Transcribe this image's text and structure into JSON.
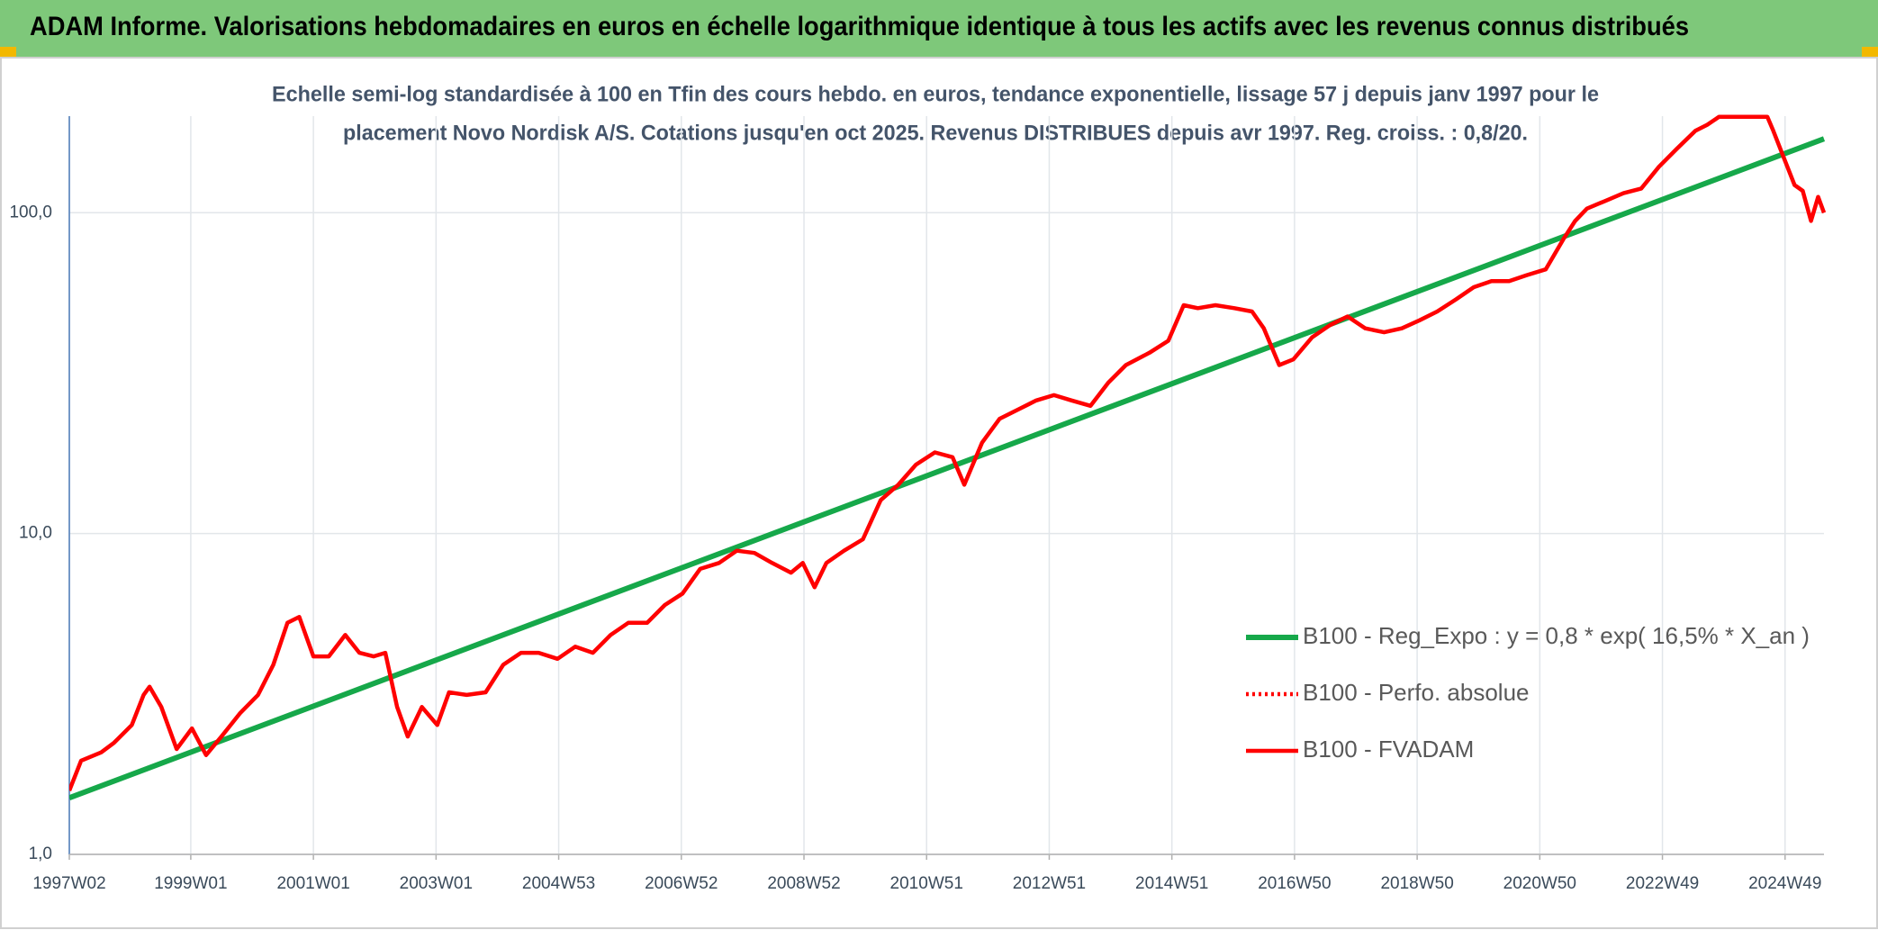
{
  "chart_data": {
    "type": "line",
    "title": "ADAM Informe. Valorisations hebdomadaires en euros en échelle logarithmique identique à tous les actifs avec les revenus connus distribués",
    "subtitle": [
      "Echelle semi-log standardisée à 100 en Tfin des cours hebdo. en euros, tendance exponentielle, lissage 57 j depuis janv 1997 pour le",
      "placement Novo Nordisk A/S. Cotations jusqu'en oct 2025. Revenus DISTRIBUES depuis avr 1997. Reg. croiss. : 0,8/20."
    ],
    "log_scale": true,
    "grid": true,
    "legend": "right",
    "xlim": [
      0,
      1488
    ],
    "xticks": [
      {
        "value": 0,
        "label": "1997W02"
      },
      {
        "value": 103,
        "label": "1999W01"
      },
      {
        "value": 207,
        "label": "2001W01"
      },
      {
        "value": 311,
        "label": "2003W01"
      },
      {
        "value": 415,
        "label": "2004W53"
      },
      {
        "value": 519,
        "label": "2006W52"
      },
      {
        "value": 623,
        "label": "2008W52"
      },
      {
        "value": 727,
        "label": "2010W51"
      },
      {
        "value": 831,
        "label": "2012W51"
      },
      {
        "value": 935,
        "label": "2014W51"
      },
      {
        "value": 1039,
        "label": "2016W50"
      },
      {
        "value": 1143,
        "label": "2018W50"
      },
      {
        "value": 1247,
        "label": "2020W50"
      },
      {
        "value": 1351,
        "label": "2022W49"
      },
      {
        "value": 1455,
        "label": "2024W49"
      }
    ],
    "ylim": [
      1,
      200
    ],
    "yticks": [
      {
        "value": 1,
        "label": "1,0"
      },
      {
        "value": 10,
        "label": "10,0"
      },
      {
        "value": 100,
        "label": "100,0"
      }
    ],
    "series": [
      {
        "name": "B100 - Reg_Expo : y = 0,8 * exp( 16,5% *  X_an )",
        "color": "#16a84a",
        "x": [
          0,
          1488
        ],
        "values": [
          1.5,
          170
        ]
      },
      {
        "name": "B100 - Perfo. absolue",
        "color": "#ff0000",
        "dash": true
      },
      {
        "name": "B100 - FVADAM",
        "color": "#ff0000",
        "x": [
          0,
          10,
          27,
          38,
          53,
          63,
          68,
          78,
          91,
          104,
          116,
          129,
          145,
          160,
          173,
          185,
          195,
          207,
          220,
          234,
          246,
          258,
          268,
          278,
          287,
          299,
          312,
          322,
          337,
          353,
          368,
          383,
          398,
          414,
          429,
          444,
          459,
          474,
          490,
          505,
          520,
          535,
          551,
          566,
          581,
          596,
          612,
          622,
          632,
          642,
          657,
          673,
          688,
          703,
          718,
          734,
          749,
          759,
          774,
          789,
          805,
          820,
          835,
          850,
          866,
          881,
          896,
          916,
          932,
          945,
          957,
          972,
          988,
          1003,
          1013,
          1026,
          1038,
          1054,
          1069,
          1084,
          1099,
          1115,
          1130,
          1145,
          1160,
          1176,
          1191,
          1206,
          1221,
          1236,
          1252,
          1267,
          1277,
          1287,
          1303,
          1318,
          1333,
          1348,
          1363,
          1379,
          1389,
          1399,
          1440,
          1445,
          1455,
          1463,
          1470,
          1477,
          1483,
          1488
        ],
        "values": [
          1.58,
          1.96,
          2.08,
          2.23,
          2.53,
          3.14,
          3.33,
          2.88,
          2.13,
          2.47,
          2.04,
          2.33,
          2.76,
          3.14,
          3.9,
          5.27,
          5.5,
          4.14,
          4.14,
          4.83,
          4.25,
          4.14,
          4.25,
          2.88,
          2.33,
          2.88,
          2.53,
          3.2,
          3.14,
          3.2,
          3.9,
          4.25,
          4.25,
          4.07,
          4.44,
          4.25,
          4.83,
          5.27,
          5.27,
          5.99,
          6.5,
          7.76,
          8.1,
          8.84,
          8.7,
          8.1,
          7.55,
          8.1,
          6.8,
          8.1,
          8.84,
          9.6,
          12.7,
          14.2,
          16.4,
          17.9,
          17.3,
          14.2,
          19.2,
          22.8,
          24.4,
          26.0,
          27.0,
          26.0,
          25.0,
          29.5,
          33.5,
          36.6,
          39.9,
          51.5,
          50.4,
          51.5,
          50.4,
          49.2,
          43.6,
          33.5,
          34.9,
          40.9,
          44.6,
          47.5,
          43.6,
          42.4,
          43.6,
          46.2,
          49.2,
          53.7,
          58.6,
          61.2,
          61.2,
          63.9,
          66.6,
          82.7,
          94.3,
          103,
          109,
          115,
          119,
          139,
          158,
          180,
          188,
          199,
          199,
          180,
          145,
          122,
          117,
          94.3,
          112,
          100
        ]
      }
    ]
  }
}
